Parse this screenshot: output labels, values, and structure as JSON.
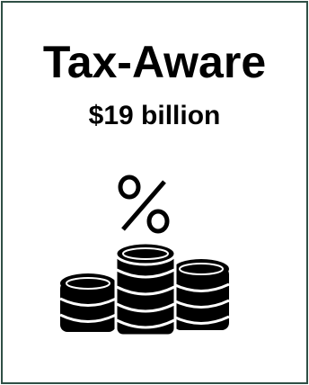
{
  "card": {
    "title": "Tax-Aware",
    "subtitle": "$19 billion",
    "icon": "percent-coins-icon",
    "border_color": "#2f4f45"
  }
}
